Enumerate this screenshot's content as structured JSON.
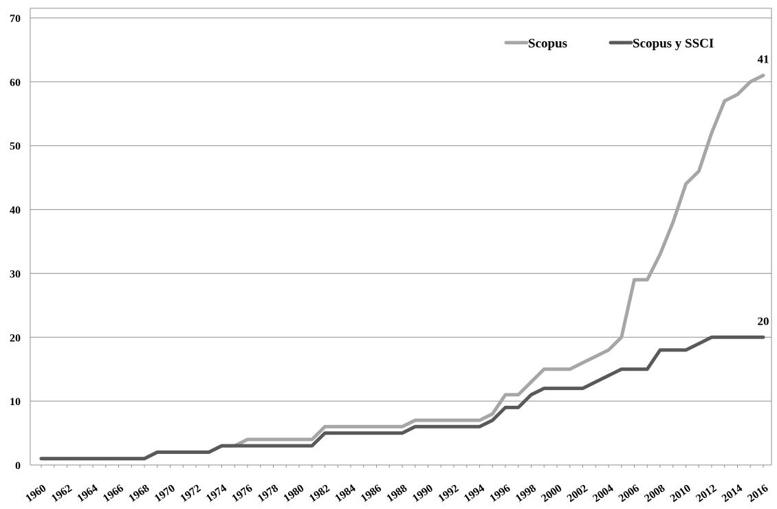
{
  "chart_data": {
    "type": "line",
    "title": "",
    "xlabel": "",
    "ylabel": "",
    "x": [
      1960,
      1961,
      1962,
      1963,
      1964,
      1965,
      1966,
      1967,
      1968,
      1969,
      1970,
      1971,
      1972,
      1973,
      1974,
      1975,
      1976,
      1977,
      1978,
      1979,
      1980,
      1981,
      1982,
      1983,
      1984,
      1985,
      1986,
      1987,
      1988,
      1989,
      1990,
      1991,
      1992,
      1993,
      1994,
      1995,
      1996,
      1997,
      1998,
      1999,
      2000,
      2001,
      2002,
      2003,
      2004,
      2005,
      2006,
      2007,
      2008,
      2009,
      2010,
      2011,
      2012,
      2013,
      2014,
      2015,
      2016
    ],
    "x_tick_labels": [
      "1960",
      "1962",
      "1964",
      "1966",
      "1968",
      "1970",
      "1972",
      "1974",
      "1976",
      "1978",
      "1980",
      "1982",
      "1984",
      "1986",
      "1988",
      "1990",
      "1992",
      "1994",
      "1996",
      "1998",
      "2000",
      "2002",
      "2004",
      "2006",
      "2008",
      "2010",
      "2012",
      "2014",
      "2016"
    ],
    "ylim": [
      0,
      70
    ],
    "y_ticks": [
      0,
      10,
      20,
      30,
      40,
      50,
      60,
      70
    ],
    "grid": true,
    "legend_position": "top-right",
    "series": [
      {
        "name": "Scopus",
        "color": "#a6a6a6",
        "values": [
          1,
          1,
          1,
          1,
          1,
          1,
          1,
          1,
          1,
          2,
          2,
          2,
          2,
          2,
          3,
          3,
          4,
          4,
          4,
          4,
          4,
          4,
          6,
          6,
          6,
          6,
          6,
          6,
          6,
          7,
          7,
          7,
          7,
          7,
          7,
          8,
          11,
          11,
          13,
          15,
          15,
          15,
          16,
          17,
          18,
          20,
          29,
          29,
          33,
          38,
          44,
          46,
          52,
          57,
          58,
          60,
          61
        ],
        "end_label": "41"
      },
      {
        "name": "Scopus y SSCI",
        "color": "#595959",
        "values": [
          1,
          1,
          1,
          1,
          1,
          1,
          1,
          1,
          1,
          2,
          2,
          2,
          2,
          2,
          3,
          3,
          3,
          3,
          3,
          3,
          3,
          3,
          5,
          5,
          5,
          5,
          5,
          5,
          5,
          6,
          6,
          6,
          6,
          6,
          6,
          7,
          9,
          9,
          11,
          12,
          12,
          12,
          12,
          13,
          14,
          15,
          15,
          15,
          18,
          18,
          18,
          19,
          20,
          20,
          20,
          20,
          20
        ],
        "end_label": "20"
      }
    ]
  }
}
